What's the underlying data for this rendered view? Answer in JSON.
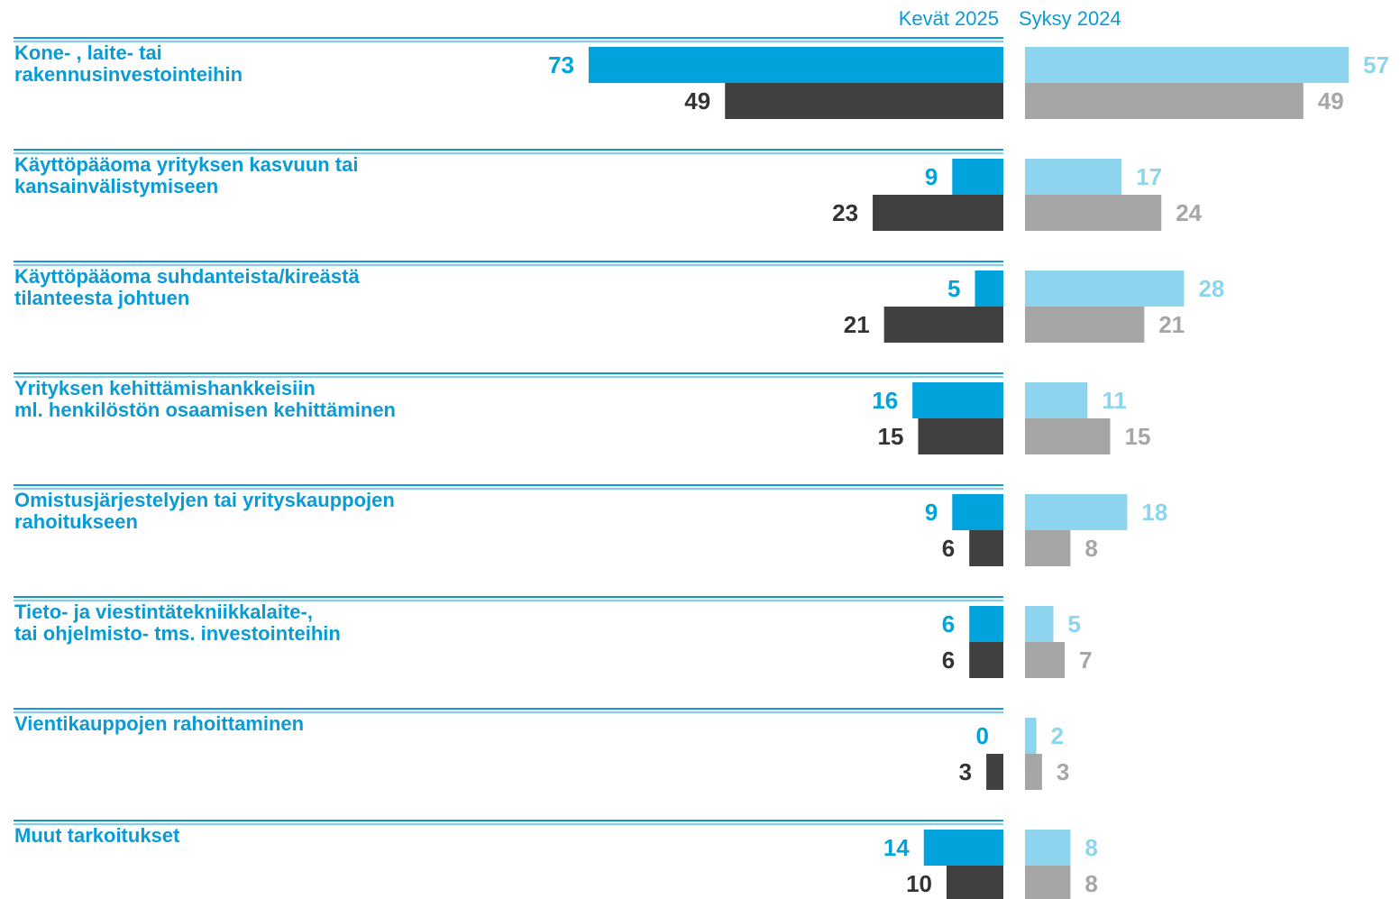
{
  "chart_data": [
    {
      "type": "bar",
      "title": "Kevät 2025",
      "direction": "left",
      "categories": [
        [
          "Kone- , laite- tai",
          "rakennusinvestointeihin"
        ],
        [
          "Käyttöpääoma yrityksen kasvuun tai",
          "kansainvälistymiseen"
        ],
        [
          "Käyttöpääoma suhdanteista/kireästä",
          "tilanteesta johtuen"
        ],
        [
          "Yrityksen kehittämishankkeisiin",
          "ml. henkilöstön osaamisen kehittäminen"
        ],
        [
          "Omistusjärjestelyjen tai yrityskauppojen",
          "rahoitukseen"
        ],
        [
          "Tieto- ja viestintätekniikkalaite-,",
          "tai ohjelmisto- tms. investointeihin"
        ],
        [
          "Vientikauppojen rahoittaminen"
        ],
        [
          "Muut tarkoitukset"
        ]
      ],
      "series": [
        {
          "color": "#00a3dc",
          "values": [
            73,
            9,
            5,
            16,
            9,
            6,
            0,
            14
          ]
        },
        {
          "color": "#404040",
          "values": [
            49,
            23,
            21,
            15,
            6,
            6,
            3,
            10
          ]
        }
      ]
    },
    {
      "type": "bar",
      "title": "Syksy 2024",
      "direction": "right",
      "series": [
        {
          "color": "#8dd5ee",
          "values": [
            57,
            17,
            28,
            11,
            18,
            5,
            2,
            8
          ]
        },
        {
          "color": "#a6a6a6",
          "values": [
            49,
            24,
            21,
            15,
            8,
            7,
            3,
            8
          ]
        }
      ]
    }
  ]
}
